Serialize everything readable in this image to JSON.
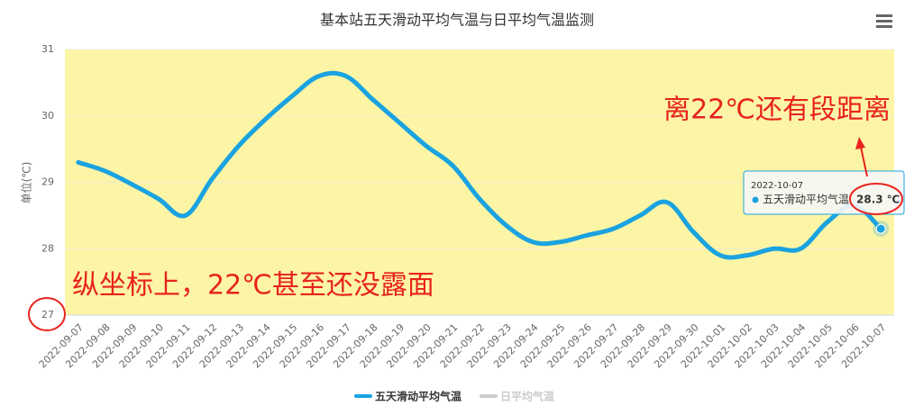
{
  "chart_data": {
    "type": "line",
    "title": "基本站五天滑动平均气温与日平均气温监测",
    "y_label": "单位(℃)",
    "categories": [
      "2022-09-07",
      "2022-09-08",
      "2022-09-09",
      "2022-09-10",
      "2022-09-11",
      "2022-09-12",
      "2022-09-13",
      "2022-09-14",
      "2022-09-15",
      "2022-09-16",
      "2022-09-17",
      "2022-09-18",
      "2022-09-19",
      "2022-09-20",
      "2022-09-21",
      "2022-09-22",
      "2022-09-23",
      "2022-09-24",
      "2022-09-25",
      "2022-09-26",
      "2022-09-27",
      "2022-09-28",
      "2022-09-29",
      "2022-09-30",
      "2022-10-01",
      "2022-10-02",
      "2022-10-03",
      "2022-10-04",
      "2022-10-05",
      "2022-10-06",
      "2022-10-07"
    ],
    "series": [
      {
        "name": "五天滑动平均气温",
        "color": "#1aa3e0",
        "visible": true,
        "values": [
          29.3,
          29.17,
          28.97,
          28.75,
          28.5,
          29.05,
          29.55,
          29.95,
          30.3,
          30.6,
          30.6,
          30.25,
          29.9,
          29.55,
          29.25,
          28.75,
          28.35,
          28.1,
          28.1,
          28.2,
          28.3,
          28.5,
          28.7,
          28.25,
          27.9,
          27.9,
          28.0,
          28.0,
          28.4,
          28.65,
          28.3
        ],
        "value_labels": [
          null,
          null,
          null,
          null,
          null,
          null,
          null,
          null,
          null,
          null,
          null,
          null,
          null,
          null,
          null,
          null,
          null,
          null,
          null,
          null,
          null,
          null,
          null,
          null,
          null,
          null,
          null,
          null,
          null,
          null,
          "28.3 ℃"
        ]
      },
      {
        "name": "日平均气温",
        "color": "#cccccc",
        "visible": false,
        "values": [
          null,
          null,
          null,
          null,
          null,
          null,
          null,
          null,
          null,
          null,
          null,
          null,
          null,
          null,
          null,
          null,
          null,
          null,
          null,
          null,
          null,
          null,
          null,
          null,
          null,
          null,
          null,
          null,
          null,
          null,
          null
        ]
      }
    ],
    "ylim": [
      27,
      31
    ],
    "yticks": [
      27,
      28,
      29,
      30,
      31
    ],
    "grid": true,
    "plot_background": "#fdf5a6",
    "annotations": [
      "离22℃还有段距离",
      "纵坐标上，22℃甚至还没露面"
    ]
  }
}
